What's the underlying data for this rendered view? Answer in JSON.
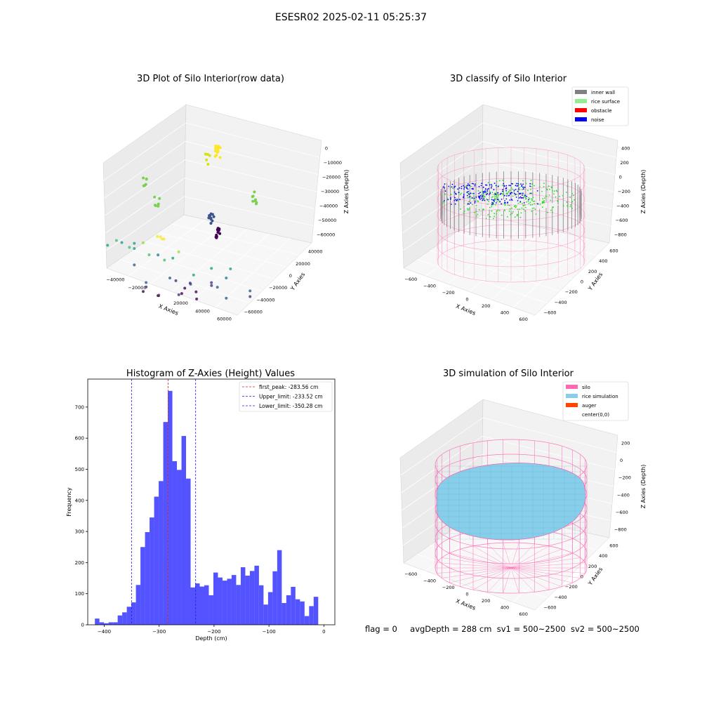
{
  "suptitle": "ESESR02 2025-02-11 05:25:37",
  "status": {
    "flag": "flag = 0",
    "avg_depth": "avgDepth = 288 cm",
    "sv1": "sv1 = 500~2500",
    "sv2": "sv2 = 500~2500"
  },
  "colors": {
    "hist": "#4a4aff",
    "peak_line": "#e02020",
    "limit_line": "#2020dd",
    "inner_wall": "#808080",
    "rice_surface": "#90ee90",
    "obstacle": "#ff0000",
    "noise": "#0000ff",
    "silo": "#ff69b4",
    "rice_simulation": "#87ceeb",
    "auger": "#ff4500"
  },
  "chart_data": [
    {
      "type": "scatter",
      "title": "3D Plot of Silo Interior(row data)",
      "xlabel": "X Axies",
      "ylabel": "Y Axies",
      "zlabel": "Z Axies (Depth)",
      "xticks": [
        "−40000",
        "−20000",
        "0",
        "20000",
        "40000",
        "60000"
      ],
      "yticks": [
        "−60000",
        "−40000",
        "−20000",
        "0",
        "20000",
        "40000"
      ],
      "zticks": [
        "0",
        "−10000",
        "−20000",
        "−30000",
        "−40000",
        "−50000",
        "−60000"
      ],
      "xlim": [
        -50000,
        60000
      ],
      "ylim": [
        -60000,
        40000
      ],
      "zlim": [
        -70000,
        5000
      ],
      "colormap": "viridis",
      "points": [
        [
          2000,
          30000,
          -3000
        ],
        [
          4000,
          31000,
          -3500
        ],
        [
          -1000,
          29000,
          -4000
        ],
        [
          6000,
          32000,
          -2500
        ],
        [
          -10000,
          35000,
          -9000
        ],
        [
          15000,
          25000,
          -12000
        ],
        [
          8000,
          35000,
          -16000
        ],
        [
          -25000,
          28000,
          -20000
        ],
        [
          -38000,
          15000,
          -26000
        ],
        [
          -40000,
          20000,
          -23000
        ],
        [
          -30000,
          10000,
          -30000
        ],
        [
          -45000,
          25000,
          -26000
        ],
        [
          -35000,
          0,
          -32000
        ],
        [
          -10000,
          25000,
          -22000
        ],
        [
          5000,
          15000,
          -24000
        ],
        [
          30000,
          0,
          -30000
        ],
        [
          40000,
          -5000,
          -36000
        ],
        [
          42000,
          -8000,
          -30000
        ],
        [
          55000,
          -15000,
          -45000
        ],
        [
          50000,
          -25000,
          -55000
        ],
        [
          45000,
          5000,
          -45000
        ],
        [
          30000,
          -10000,
          -48000
        ],
        [
          -30000,
          10000,
          -42000
        ],
        [
          -15000,
          20000,
          -46000
        ],
        [
          -5000,
          0,
          -48000
        ],
        [
          10000,
          -5000,
          -50000
        ],
        [
          5000,
          5000,
          -55000
        ],
        [
          20000,
          -20000,
          -52000
        ],
        [
          -20000,
          10000,
          -55000
        ],
        [
          -10000,
          -20000,
          -60000
        ],
        [
          0,
          -10000,
          -62000
        ],
        [
          10000,
          -15000,
          -65000
        ],
        [
          -15000,
          0,
          -64000
        ],
        [
          -25000,
          5000,
          -62000
        ],
        [
          15000,
          -30000,
          -60000
        ],
        [
          -5000,
          -25000,
          -66000
        ],
        [
          2000,
          -20000,
          -58000
        ],
        [
          6000,
          -22000,
          -64000
        ],
        [
          25000,
          20000,
          -28000
        ],
        [
          -20000,
          -10000,
          -40000
        ]
      ]
    },
    {
      "type": "scatter",
      "title": "3D classify of Silo Interior",
      "xlabel": "X Axies",
      "ylabel": "Y Axies",
      "zlabel": "Z Axies (Depth)",
      "xticks": [
        "−600",
        "−400",
        "−200",
        "0",
        "200",
        "400",
        "600"
      ],
      "yticks": [
        "−600",
        "−400",
        "−200",
        "0",
        "200",
        "400",
        "600"
      ],
      "zticks": [
        "400",
        "200",
        "0",
        "−200",
        "−400",
        "−600",
        "−800"
      ],
      "xlim": [
        -650,
        650
      ],
      "ylim": [
        -650,
        650
      ],
      "zlim": [
        -950,
        420
      ],
      "silo_radius": 560,
      "wall_top": -180,
      "wall_bottom": -480,
      "legend": [
        "inner wall",
        "rice surface",
        "obstacle",
        "noise"
      ],
      "legend_position": "top-right"
    },
    {
      "type": "bar",
      "title": "Histogram of Z-Axies (Height) Values",
      "xlabel": "Depth (cm)",
      "ylabel": "Frequency",
      "xlim": [
        -430,
        20
      ],
      "ylim": [
        0,
        790
      ],
      "xticks": [
        -400,
        -300,
        -200,
        -100,
        0
      ],
      "yticks": [
        0,
        100,
        200,
        300,
        400,
        500,
        600,
        700
      ],
      "bin_start": -417,
      "bin_width": 8.3,
      "values": [
        20,
        8,
        5,
        8,
        8,
        30,
        40,
        58,
        72,
        128,
        250,
        298,
        345,
        412,
        462,
        652,
        752,
        526,
        498,
        607,
        470,
        120,
        133,
        123,
        127,
        95,
        168,
        152,
        142,
        148,
        160,
        128,
        185,
        158,
        173,
        190,
        127,
        65,
        105,
        172,
        240,
        70,
        95,
        122,
        82,
        75,
        28,
        60,
        90
      ],
      "vlines": [
        {
          "value": -283.56,
          "label": "first_peak: -283.56 cm",
          "color": "peak_line"
        },
        {
          "value": -233.52,
          "label": "Upper_limit: -233.52 cm",
          "color": "limit_line"
        },
        {
          "value": -350.28,
          "label": "Lower_limit: -350.28 cm",
          "color": "limit_line"
        }
      ],
      "legend_position": "top-right"
    },
    {
      "type": "surface",
      "title": "3D simulation of Silo Interior",
      "xlabel": "X Axies",
      "ylabel": "Y Axies",
      "zlabel": "Z Axies (Depth)",
      "xticks": [
        "−600",
        "−400",
        "−200",
        "0",
        "200",
        "400",
        "600"
      ],
      "yticks": [
        "−600",
        "−400",
        "−200",
        "0",
        "200",
        "400",
        "600"
      ],
      "zticks": [
        "200",
        "0",
        "−200",
        "−400",
        "−600",
        "−800"
      ],
      "xlim": [
        -650,
        650
      ],
      "ylim": [
        -650,
        650
      ],
      "zlim": [
        -950,
        350
      ],
      "silo_radius": 560,
      "silo_top": 0,
      "silo_bottom": -950,
      "surface_depth": -288,
      "legend": [
        "silo",
        "rice simulation",
        "auger",
        "center(0,0)"
      ],
      "legend_position": "top-right"
    }
  ]
}
